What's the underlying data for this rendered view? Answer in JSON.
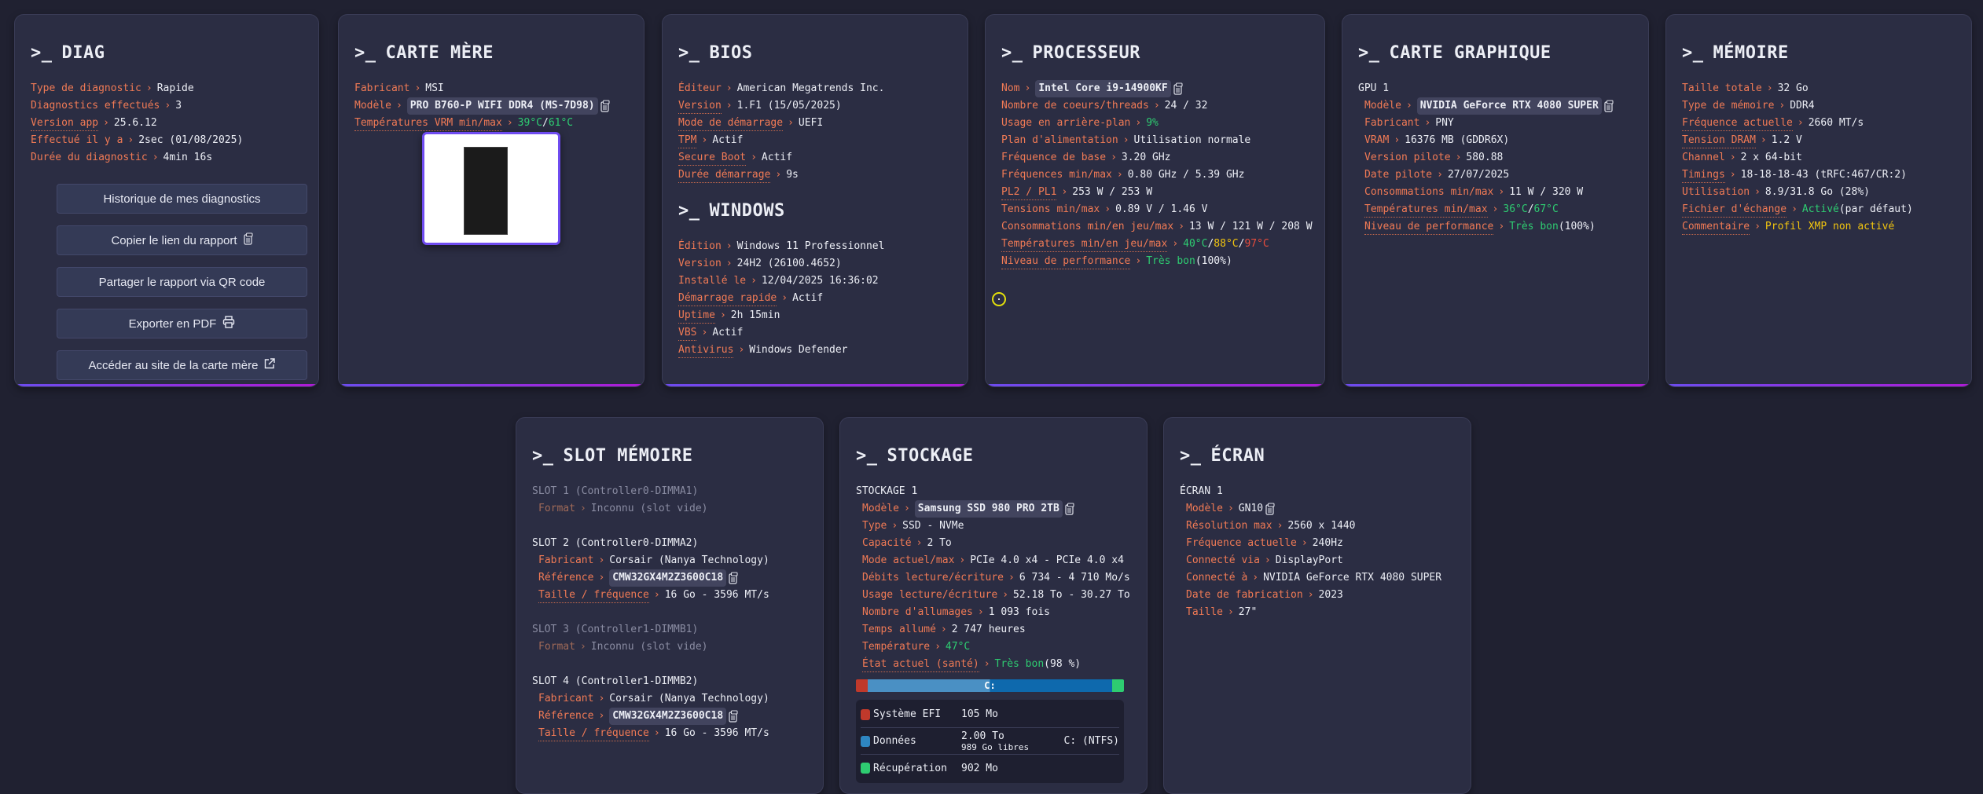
{
  "prompt": ">_",
  "separator": "›",
  "colors": {
    "background": "#202131",
    "card": "#2b2d43",
    "label": "#f07a55",
    "good": "#2ecc71",
    "warn": "#f1c40f",
    "bad": "#e74c3c",
    "accent": "#6f4cf0"
  },
  "diag": {
    "title": "DIAG",
    "groups": [
      {
        "rows": [
          {
            "label": "Type de diagnostic",
            "parts": [
              {
                "t": "Rapide"
              }
            ]
          },
          {
            "label": "Diagnostics effectués",
            "parts": [
              {
                "t": "3"
              }
            ]
          },
          {
            "label": "Version app",
            "tip": true,
            "parts": [
              {
                "t": "25.6.12"
              }
            ]
          },
          {
            "label": "Effectué il y a",
            "parts": [
              {
                "t": "2sec (01/08/2025)"
              }
            ]
          },
          {
            "label": "Durée du diagnostic",
            "parts": [
              {
                "t": "4min 16s"
              }
            ]
          }
        ]
      }
    ],
    "buttons": [
      {
        "label": "Historique de mes diagnostics",
        "icon": ""
      },
      {
        "label": "Copier le lien du rapport",
        "icon": "clipboard-icon"
      },
      {
        "label": "Partager le rapport via QR code",
        "icon": ""
      },
      {
        "label": "Exporter en PDF",
        "icon": "printer-icon"
      },
      {
        "label": "Accéder au site de la carte mère",
        "icon": "external-link-icon"
      }
    ]
  },
  "motherboard": {
    "title": "CARTE MÈRE",
    "groups": [
      {
        "rows": [
          {
            "label": "Fabricant",
            "parts": [
              {
                "t": "MSI"
              }
            ]
          },
          {
            "label": "Modèle",
            "copy": true,
            "parts": [
              {
                "t": "PRO B760-P WIFI DDR4 (MS-7D98)",
                "chip": true
              }
            ]
          },
          {
            "label": "Températures VRM min/max",
            "tip": true,
            "parts": [
              {
                "t": "39°C",
                "c": "green"
              },
              {
                "t": " / "
              },
              {
                "t": "61°C",
                "c": "green"
              }
            ]
          }
        ]
      }
    ]
  },
  "bios": {
    "title": "BIOS",
    "groups": [
      {
        "rows": [
          {
            "label": "Éditeur",
            "parts": [
              {
                "t": "American Megatrends Inc."
              }
            ]
          },
          {
            "label": "Version",
            "tip": true,
            "parts": [
              {
                "t": "1.F1 (15/05/2025)"
              }
            ]
          },
          {
            "label": "Mode de démarrage",
            "tip": true,
            "parts": [
              {
                "t": "UEFI"
              }
            ]
          },
          {
            "label": "TPM",
            "tip": true,
            "parts": [
              {
                "t": "Actif"
              }
            ]
          },
          {
            "label": "Secure Boot",
            "tip": true,
            "parts": [
              {
                "t": "Actif"
              }
            ]
          },
          {
            "label": "Durée démarrage",
            "tip": true,
            "parts": [
              {
                "t": "9s"
              }
            ]
          }
        ]
      }
    ]
  },
  "windows": {
    "title": "WINDOWS",
    "groups": [
      {
        "rows": [
          {
            "label": "Édition",
            "parts": [
              {
                "t": "Windows 11 Professionnel"
              }
            ]
          },
          {
            "label": "Version",
            "parts": [
              {
                "t": "24H2 (26100.4652)"
              }
            ]
          },
          {
            "label": "Installé le",
            "parts": [
              {
                "t": "12/04/2025 16:36:02"
              }
            ]
          },
          {
            "label": "Démarrage rapide",
            "tip": true,
            "parts": [
              {
                "t": "Actif"
              }
            ]
          },
          {
            "label": "Uptime",
            "tip": true,
            "parts": [
              {
                "t": "2h 15min"
              }
            ]
          },
          {
            "label": "VBS",
            "tip": true,
            "parts": [
              {
                "t": "Actif"
              }
            ]
          },
          {
            "label": "Antivirus",
            "tip": true,
            "parts": [
              {
                "t": "Windows Defender"
              }
            ]
          }
        ]
      }
    ]
  },
  "cpu": {
    "title": "PROCESSEUR",
    "groups": [
      {
        "rows": [
          {
            "label": "Nom",
            "copy": true,
            "parts": [
              {
                "t": "Intel Core i9-14900KF",
                "chip": true
              }
            ]
          },
          {
            "label": "Nombre de coeurs/threads",
            "parts": [
              {
                "t": "24 / 32"
              }
            ]
          },
          {
            "label": "Usage en arrière-plan",
            "parts": [
              {
                "t": "9%",
                "c": "green"
              }
            ]
          },
          {
            "label": "Plan d'alimentation",
            "parts": [
              {
                "t": "Utilisation normale"
              }
            ]
          },
          {
            "label": "Fréquence de base",
            "parts": [
              {
                "t": "3.20 GHz"
              }
            ]
          },
          {
            "label": "Fréquences min/max",
            "parts": [
              {
                "t": "0.80 GHz / 5.39 GHz"
              }
            ]
          },
          {
            "label": "PL2 / PL1",
            "tip": true,
            "parts": [
              {
                "t": "253 W / 253 W"
              }
            ]
          },
          {
            "label": "Tensions min/max",
            "parts": [
              {
                "t": "0.89 V / 1.46 V"
              }
            ]
          },
          {
            "label": "Consommations min/en jeu/max",
            "parts": [
              {
                "t": "13 W / 121 W / 208 W"
              }
            ]
          },
          {
            "label": "Températures min/en jeu/max",
            "tip": true,
            "parts": [
              {
                "t": "40°C",
                "c": "green"
              },
              {
                "t": " / "
              },
              {
                "t": "88°C",
                "c": "yellow"
              },
              {
                "t": " / "
              },
              {
                "t": "97°C",
                "c": "red"
              }
            ]
          },
          {
            "label": "Niveau de performance",
            "tip": true,
            "parts": [
              {
                "t": "Très bon",
                "c": "green"
              },
              {
                "t": " (100%)"
              }
            ]
          }
        ]
      }
    ]
  },
  "gpu": {
    "title": "CARTE GRAPHIQUE",
    "groups": [
      {
        "heading": "GPU 1",
        "rows": [
          {
            "label": "Modèle",
            "copy": true,
            "parts": [
              {
                "t": "NVIDIA GeForce RTX 4080 SUPER",
                "chip": true
              }
            ]
          },
          {
            "label": "Fabricant",
            "parts": [
              {
                "t": "PNY"
              }
            ]
          },
          {
            "label": "VRAM",
            "parts": [
              {
                "t": "16376 MB (GDDR6X)"
              }
            ]
          },
          {
            "label": "Version pilote",
            "parts": [
              {
                "t": "580.88"
              }
            ]
          },
          {
            "label": "Date pilote",
            "parts": [
              {
                "t": "27/07/2025"
              }
            ]
          },
          {
            "label": "Consommations min/max",
            "parts": [
              {
                "t": "11 W / 320 W"
              }
            ]
          },
          {
            "label": "Températures min/max",
            "tip": true,
            "parts": [
              {
                "t": "36°C",
                "c": "green"
              },
              {
                "t": " / "
              },
              {
                "t": "67°C",
                "c": "green"
              }
            ]
          },
          {
            "label": "Niveau de performance",
            "tip": true,
            "parts": [
              {
                "t": "Très bon",
                "c": "green"
              },
              {
                "t": " (100%)"
              }
            ]
          }
        ]
      }
    ]
  },
  "memory": {
    "title": "MÉMOIRE",
    "groups": [
      {
        "rows": [
          {
            "label": "Taille totale",
            "parts": [
              {
                "t": "32 Go"
              }
            ]
          },
          {
            "label": "Type de mémoire",
            "parts": [
              {
                "t": "DDR4"
              }
            ]
          },
          {
            "label": "Fréquence actuelle",
            "tip": true,
            "parts": [
              {
                "t": "2660 MT/s"
              }
            ]
          },
          {
            "label": "Tension DRAM",
            "tip": true,
            "parts": [
              {
                "t": "1.2 V"
              }
            ]
          },
          {
            "label": "Channel",
            "parts": [
              {
                "t": "2 x 64-bit"
              }
            ]
          },
          {
            "label": "Timings",
            "tip": true,
            "parts": [
              {
                "t": "18-18-18-43 (tRFC:467/CR:2)"
              }
            ]
          },
          {
            "label": "Utilisation",
            "parts": [
              {
                "t": "8.9/31.8 Go (28%)"
              }
            ]
          },
          {
            "label": "Fichier d'échange",
            "tip": true,
            "parts": [
              {
                "t": "Activé",
                "c": "green"
              },
              {
                "t": " (par défaut)"
              }
            ]
          },
          {
            "label": "Commentaire",
            "tip": true,
            "parts": [
              {
                "t": "Profil XMP non activé",
                "c": "yellow"
              }
            ]
          }
        ]
      }
    ]
  },
  "slots": {
    "title": "SLOT MÉMOIRE",
    "groups": [
      {
        "heading": "SLOT 1 (Controller0-DIMMA1)",
        "muted": true,
        "rows": [
          {
            "label": "Format",
            "parts": [
              {
                "t": "Inconnu (slot vide)"
              }
            ]
          }
        ]
      },
      {
        "heading": "SLOT 2 (Controller0-DIMMA2)",
        "rows": [
          {
            "label": "Fabricant",
            "parts": [
              {
                "t": "Corsair (Nanya Technology)"
              }
            ]
          },
          {
            "label": "Référence",
            "copy": true,
            "parts": [
              {
                "t": "CMW32GX4M2Z3600C18",
                "chip": true
              }
            ]
          },
          {
            "label": "Taille / fréquence",
            "tip": true,
            "parts": [
              {
                "t": "16 Go - 3596 MT/s"
              }
            ]
          }
        ]
      },
      {
        "heading": "SLOT 3 (Controller1-DIMMB1)",
        "muted": true,
        "rows": [
          {
            "label": "Format",
            "parts": [
              {
                "t": "Inconnu (slot vide)"
              }
            ]
          }
        ]
      },
      {
        "heading": "SLOT 4 (Controller1-DIMMB2)",
        "rows": [
          {
            "label": "Fabricant",
            "parts": [
              {
                "t": "Corsair (Nanya Technology)"
              }
            ]
          },
          {
            "label": "Référence",
            "copy": true,
            "parts": [
              {
                "t": "CMW32GX4M2Z3600C18",
                "chip": true
              }
            ]
          },
          {
            "label": "Taille / fréquence",
            "tip": true,
            "parts": [
              {
                "t": "16 Go - 3596 MT/s"
              }
            ]
          }
        ]
      }
    ]
  },
  "storage": {
    "title": "STOCKAGE",
    "groups": [
      {
        "heading": "STOCKAGE 1",
        "rows": [
          {
            "label": "Modèle",
            "copy": true,
            "parts": [
              {
                "t": "Samsung SSD 980 PRO 2TB",
                "chip": true
              }
            ]
          },
          {
            "label": "Type",
            "parts": [
              {
                "t": "SSD - NVMe"
              }
            ]
          },
          {
            "label": "Capacité",
            "parts": [
              {
                "t": "2 To"
              }
            ]
          },
          {
            "label": "Mode actuel/max",
            "parts": [
              {
                "t": "PCIe 4.0 x4 - PCIe 4.0 x4"
              }
            ]
          },
          {
            "label": "Débits lecture/écriture",
            "parts": [
              {
                "t": "6 734 - 4 710 Mo/s"
              }
            ]
          },
          {
            "label": "Usage lecture/écriture",
            "parts": [
              {
                "t": "52.18 To - 30.27 To"
              }
            ]
          },
          {
            "label": "Nombre d'allumages",
            "parts": [
              {
                "t": "1 093 fois"
              }
            ]
          },
          {
            "label": "Temps allumé",
            "parts": [
              {
                "t": "2 747 heures"
              }
            ]
          },
          {
            "label": "Température",
            "parts": [
              {
                "t": "47°C",
                "c": "green"
              }
            ]
          },
          {
            "label": "État actuel (santé)",
            "tip": true,
            "parts": [
              {
                "t": "Très bon",
                "c": "green"
              },
              {
                "t": " (98 %)"
              }
            ]
          }
        ]
      }
    ],
    "bar_label": "C:",
    "data_used_fraction": 0.5,
    "partitions": [
      {
        "name": "Système EFI",
        "size": "105 Mo",
        "free": "",
        "fs": "",
        "color": "#c0392b",
        "fraction": 0.045
      },
      {
        "name": "Données",
        "size": "2.00 To",
        "free": "989 Go libres",
        "fs": "C: (NTFS)",
        "color": "#2e86c1",
        "fraction": 0.91
      },
      {
        "name": "Récupération",
        "size": "902 Mo",
        "free": "",
        "fs": "",
        "color": "#2ecc71",
        "fraction": 0.045
      }
    ]
  },
  "screen": {
    "title": "ÉCRAN",
    "groups": [
      {
        "heading": "ÉCRAN 1",
        "rows": [
          {
            "label": "Modèle",
            "copy": true,
            "parts": [
              {
                "t": "GN10"
              }
            ]
          },
          {
            "label": "Résolution max",
            "parts": [
              {
                "t": "2560 x 1440"
              }
            ]
          },
          {
            "label": "Fréquence actuelle",
            "parts": [
              {
                "t": "240Hz"
              }
            ]
          },
          {
            "label": "Connecté via",
            "parts": [
              {
                "t": "DisplayPort"
              }
            ]
          },
          {
            "label": "Connecté à",
            "parts": [
              {
                "t": "NVIDIA GeForce RTX 4080 SUPER"
              }
            ]
          },
          {
            "label": "Date de fabrication",
            "parts": [
              {
                "t": "2023"
              }
            ]
          },
          {
            "label": "Taille",
            "parts": [
              {
                "t": "27\""
              }
            ]
          }
        ]
      }
    ]
  }
}
